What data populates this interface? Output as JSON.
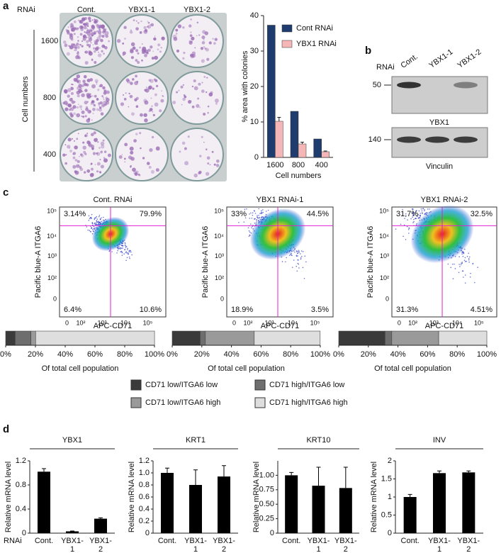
{
  "panels": {
    "a": {
      "letter": "a",
      "row_header": "RNAi",
      "columns": [
        "Cont.",
        "YBX1-1",
        "YBX1-2"
      ],
      "rows": [
        "1600",
        "800",
        "400"
      ],
      "rows_label": "Cell numbers"
    },
    "b": {
      "letter": "b",
      "row_header": "RNAi",
      "lanes": [
        "Cont.",
        "YBX1-1",
        "YBX1-2"
      ],
      "blots": [
        {
          "marker": "50",
          "label": "YBX1"
        },
        {
          "marker": "140",
          "label": "Vinculin"
        }
      ]
    },
    "c": {
      "letter": "c",
      "y_label": "Pacific blue-A ITGA6",
      "x_label": "APC-CD71",
      "y_ticks": [
        "10⁵",
        "10⁴",
        "10³",
        "10²",
        "0"
      ],
      "x_ticks": [
        "0",
        "10²",
        "10³",
        "10⁴",
        "10⁵"
      ]
    },
    "d": {
      "letter": "d",
      "row_header": "RNAi"
    }
  },
  "chart_data": [
    {
      "type": "bar",
      "y_label": "% area with colonies",
      "x_label": "Cell numbers",
      "categories": [
        "1600",
        "800",
        "400"
      ],
      "series": [
        {
          "name": "Cont RNAi",
          "color": "#1f3c6e",
          "values": [
            37.3,
            13,
            5.2
          ]
        },
        {
          "name": "YBX1 RNAi",
          "color": "#f4b6b6",
          "values": [
            10.2,
            3.8,
            1.6
          ],
          "errors": [
            1.1,
            0.5,
            0.2
          ]
        }
      ],
      "ylim": [
        0,
        40
      ],
      "yticks": [
        0,
        10,
        20,
        30,
        40
      ],
      "legend": "upper right"
    },
    {
      "type": "stacked_barh",
      "categories": [
        "Cont. RNAi",
        "YBX1 RNAi-1",
        "YBX1 RNAi-2"
      ],
      "x_label": "Of total cell population",
      "xlim": [
        0,
        100
      ],
      "xticks": [
        {
          "value": 0,
          "label": "0%"
        },
        {
          "value": 20,
          "label": "20%"
        },
        {
          "value": 40,
          "label": "40%"
        },
        {
          "value": 60,
          "label": "60%"
        },
        {
          "value": 80,
          "label": "80%"
        },
        {
          "value": 100,
          "label": "100%"
        }
      ],
      "series": [
        {
          "name": "CD71 low/ITGA6 low",
          "color": "#3a3a3a",
          "values": [
            6.4,
            18.9,
            31.3
          ],
          "value_labels": [
            "6.4%",
            "18.9%",
            "31.3%"
          ]
        },
        {
          "name": "CD71 high/ITGA6 low",
          "color": "#6e6e6e",
          "values": [
            10.6,
            3.5,
            4.51
          ],
          "value_labels": [
            "10.6%",
            "3.5%",
            "4.51%"
          ]
        },
        {
          "name": "CD71 low/ITGA6 high",
          "color": "#9a9a9a",
          "values": [
            3.14,
            33,
            31.7
          ],
          "value_labels": [
            "3.14%",
            "33%",
            "31.7%"
          ]
        },
        {
          "name": "CD71 high/ITGA6 high",
          "color": "#dedede",
          "values": [
            79.9,
            44.5,
            32.5
          ],
          "value_labels": [
            "79.9%",
            "44.5%",
            "32.5%"
          ]
        }
      ]
    },
    {
      "type": "bar",
      "title": "YBX1",
      "y_label": "Relative mRNA level",
      "categories": [
        [
          "Cont."
        ],
        [
          "YBX1-",
          "1"
        ],
        [
          "YBX1-",
          "2"
        ]
      ],
      "values": [
        1.02,
        0.03,
        0.24
      ],
      "errors": [
        0.05,
        0.005,
        0.015
      ],
      "color": "#000000",
      "ylim": [
        0,
        1.2
      ],
      "yticks": [
        0,
        0.4,
        0.8,
        1.2
      ]
    },
    {
      "type": "bar",
      "title": "KRT1",
      "y_label": "Relative mRNA level",
      "categories": [
        [
          "Cont."
        ],
        [
          "YBX1-",
          "1"
        ],
        [
          "YBX1-",
          "2"
        ]
      ],
      "values": [
        1.0,
        0.8,
        0.94
      ],
      "errors": [
        0.08,
        0.25,
        0.18
      ],
      "color": "#000000",
      "ylim": [
        0,
        1.2
      ],
      "yticks": [
        0,
        0.2,
        0.4,
        0.6,
        0.8,
        {
          "value": 1,
          "label": "1.0"
        },
        1.2
      ]
    },
    {
      "type": "bar",
      "title": "KRT10",
      "y_label": "Relative mRNA level",
      "categories": [
        [
          "Cont."
        ],
        [
          "YBX1-",
          "1"
        ],
        [
          "YBX1-",
          "2"
        ]
      ],
      "values": [
        1.0,
        0.82,
        0.78
      ],
      "errors": [
        0.05,
        0.32,
        0.36
      ],
      "color": "#000000",
      "ylim": [
        0,
        1.25
      ],
      "yticks": [
        0,
        0.25,
        {
          "value": 0.5,
          "label": "0.50"
        },
        0.75,
        {
          "value": 1,
          "label": "1.00"
        }
      ]
    },
    {
      "type": "bar",
      "title": "INV",
      "y_label": "Relative mRNA level",
      "categories": [
        [
          "Cont."
        ],
        [
          "YBX1-",
          "1"
        ],
        [
          "YBX1-",
          "2"
        ]
      ],
      "values": [
        1.0,
        1.66,
        1.68
      ],
      "errors": [
        0.07,
        0.06,
        0.04
      ],
      "color": "#000000",
      "ylim": [
        0,
        2
      ],
      "yticks": [
        0,
        0.5,
        1,
        1.5,
        2
      ]
    }
  ]
}
